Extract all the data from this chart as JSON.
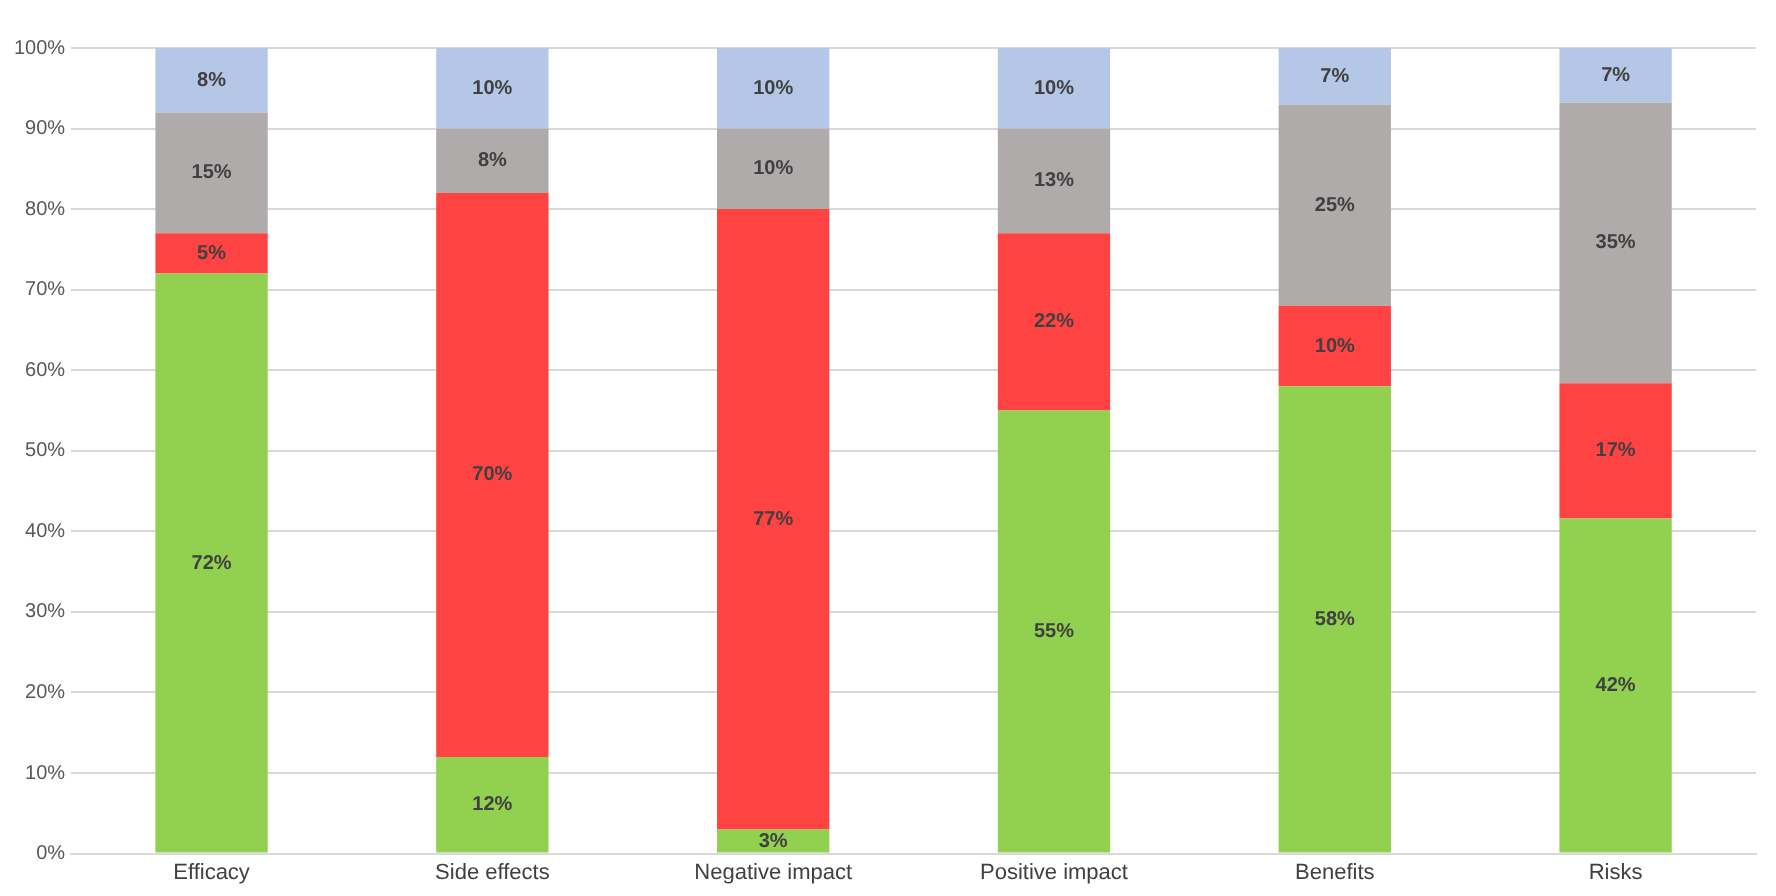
{
  "chart_data": {
    "type": "bar",
    "stacked": true,
    "categories": [
      "Efficacy",
      "Side effects",
      "Negative impact",
      "Positive impact",
      "Benefits",
      "Risks"
    ],
    "series": [
      {
        "color": "#92d050",
        "values": [
          72,
          12,
          3,
          55,
          58,
          41.6
        ],
        "value_labels": [
          "72%",
          "12%",
          "3%",
          "55%",
          "58%",
          "42%"
        ]
      },
      {
        "color": "#ff4343",
        "values": [
          5,
          70,
          77,
          22,
          10,
          16.8
        ],
        "value_labels": [
          "5%",
          "70%",
          "77%",
          "22%",
          "10%",
          "17%"
        ]
      },
      {
        "color": "#afabab",
        "values": [
          15,
          8,
          10,
          13,
          25,
          34.8
        ],
        "value_labels": [
          "15%",
          "8%",
          "10%",
          "13%",
          "25%",
          "35%"
        ]
      },
      {
        "color": "#b4c7e7",
        "values": [
          8,
          10,
          10,
          10,
          7,
          6.8
        ],
        "value_labels": [
          "8%",
          "10%",
          "10%",
          "10%",
          "7%",
          "7%"
        ]
      }
    ],
    "ylim": [
      0,
      100
    ],
    "yticks": [
      {
        "value": 0,
        "label": "0%"
      },
      {
        "value": 10,
        "label": "10%"
      },
      {
        "value": 20,
        "label": "20%"
      },
      {
        "value": 30,
        "label": "30%"
      },
      {
        "value": 40,
        "label": "40%"
      },
      {
        "value": 50,
        "label": "50%"
      },
      {
        "value": 60,
        "label": "60%"
      },
      {
        "value": 70,
        "label": "70%"
      },
      {
        "value": 80,
        "label": "80%"
      },
      {
        "value": 90,
        "label": "90%"
      },
      {
        "value": 100,
        "label": "100%"
      }
    ],
    "grid": "y",
    "legend": false
  }
}
